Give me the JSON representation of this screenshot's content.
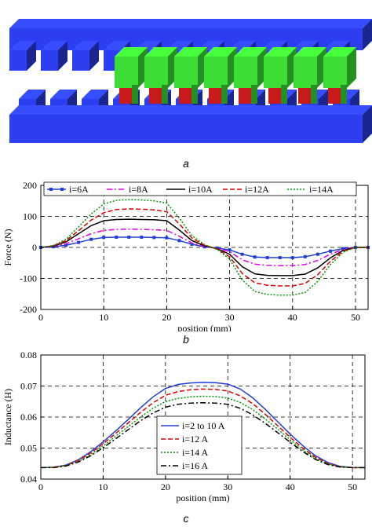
{
  "captions": {
    "a": "a",
    "b": "b",
    "c": "c"
  },
  "colors": {
    "stator": "#2b3ef0",
    "mover": "#3bdc33",
    "coil": "#c81a1a",
    "i6": "#1f3fd8",
    "i8": "#e000e0",
    "i10": "#000000",
    "i12": "#e00000",
    "i14": "#009900"
  },
  "chart_data": [
    {
      "type": "line",
      "title": "",
      "xlabel": "position (mm)",
      "ylabel": "Force (N)",
      "xlim": [
        0,
        52
      ],
      "ylim": [
        -200,
        200
      ],
      "xticks": [
        0,
        10,
        20,
        30,
        40,
        50
      ],
      "yticks": [
        -200,
        -100,
        0,
        100,
        200
      ],
      "grid": true,
      "legend": "top",
      "series": [
        {
          "name": "i=6A",
          "color": "#1f3fd8",
          "style": "solid-square",
          "x": [
            0,
            2,
            4,
            6,
            8,
            10,
            12,
            14,
            16,
            18,
            20,
            22,
            24,
            26,
            28,
            30,
            32,
            34,
            36,
            38,
            40,
            42,
            44,
            46,
            48,
            50,
            52
          ],
          "y": [
            0,
            2,
            7,
            16,
            26,
            32,
            33,
            33,
            33,
            32,
            31,
            22,
            10,
            2,
            -2,
            -8,
            -22,
            -31,
            -33,
            -33,
            -33,
            -30,
            -22,
            -12,
            -4,
            0,
            0
          ]
        },
        {
          "name": "i=8A",
          "color": "#e000e0",
          "style": "dashdot",
          "x": [
            0,
            2,
            4,
            6,
            8,
            10,
            12,
            14,
            16,
            18,
            20,
            22,
            24,
            26,
            28,
            30,
            32,
            34,
            36,
            38,
            40,
            42,
            44,
            46,
            48,
            50,
            52
          ],
          "y": [
            0,
            3,
            12,
            28,
            44,
            55,
            58,
            59,
            58,
            57,
            55,
            36,
            14,
            3,
            -3,
            -14,
            -40,
            -54,
            -58,
            -59,
            -59,
            -55,
            -42,
            -22,
            -7,
            0,
            0
          ]
        },
        {
          "name": "i=10A",
          "color": "#000000",
          "style": "solid",
          "x": [
            0,
            2,
            4,
            6,
            8,
            10,
            12,
            14,
            16,
            18,
            20,
            22,
            24,
            26,
            28,
            30,
            32,
            34,
            36,
            38,
            40,
            42,
            44,
            46,
            48,
            50,
            52
          ],
          "y": [
            0,
            4,
            18,
            44,
            70,
            86,
            90,
            91,
            90,
            89,
            86,
            56,
            22,
            5,
            -4,
            -22,
            -62,
            -85,
            -90,
            -91,
            -91,
            -86,
            -66,
            -34,
            -10,
            0,
            0
          ]
        },
        {
          "name": "i=12A",
          "color": "#e00000",
          "style": "dashed",
          "x": [
            0,
            2,
            4,
            6,
            8,
            10,
            12,
            14,
            16,
            18,
            20,
            22,
            24,
            26,
            28,
            30,
            32,
            34,
            36,
            38,
            40,
            42,
            44,
            46,
            48,
            50,
            52
          ],
          "y": [
            0,
            5,
            22,
            54,
            88,
            112,
            122,
            124,
            123,
            121,
            115,
            76,
            30,
            7,
            -5,
            -30,
            -84,
            -114,
            -122,
            -124,
            -124,
            -116,
            -88,
            -45,
            -13,
            0,
            0
          ]
        },
        {
          "name": "i=14A",
          "color": "#009900",
          "style": "dotted",
          "x": [
            0,
            2,
            4,
            6,
            8,
            10,
            12,
            14,
            16,
            18,
            20,
            22,
            24,
            26,
            28,
            30,
            32,
            34,
            36,
            38,
            40,
            42,
            44,
            46,
            48,
            50,
            52
          ],
          "y": [
            0,
            6,
            26,
            66,
            108,
            140,
            152,
            154,
            153,
            150,
            143,
            95,
            38,
            9,
            -6,
            -38,
            -105,
            -142,
            -152,
            -154,
            -154,
            -145,
            -110,
            -56,
            -16,
            0,
            0
          ]
        }
      ]
    },
    {
      "type": "line",
      "title": "",
      "xlabel": "position (mm)",
      "ylabel": "Inductance (H)",
      "xlim": [
        0,
        52
      ],
      "ylim": [
        0.04,
        0.08
      ],
      "xticks": [
        0,
        10,
        20,
        30,
        40,
        50
      ],
      "yticks": [
        0.04,
        0.05,
        0.06,
        0.07,
        0.08
      ],
      "grid": true,
      "legend": "bottom-left",
      "series": [
        {
          "name": "i=2 to 10 A",
          "color": "#1f3fd8",
          "style": "solid",
          "x": [
            0,
            2,
            4,
            6,
            8,
            10,
            12,
            14,
            16,
            18,
            20,
            22,
            24,
            26,
            28,
            30,
            32,
            34,
            36,
            38,
            40,
            42,
            44,
            46,
            48,
            50,
            52
          ],
          "y": [
            0.0437,
            0.0438,
            0.0445,
            0.0462,
            0.0488,
            0.052,
            0.0555,
            0.0592,
            0.063,
            0.0665,
            0.0692,
            0.0705,
            0.071,
            0.0712,
            0.0711,
            0.0706,
            0.069,
            0.0662,
            0.0625,
            0.0585,
            0.0545,
            0.0508,
            0.0476,
            0.0454,
            0.0441,
            0.0437,
            0.0437
          ]
        },
        {
          "name": "i=12 A",
          "color": "#e00000",
          "style": "dashed",
          "x": [
            0,
            2,
            4,
            6,
            8,
            10,
            12,
            14,
            16,
            18,
            20,
            22,
            24,
            26,
            28,
            30,
            32,
            34,
            36,
            38,
            40,
            42,
            44,
            46,
            48,
            50,
            52
          ],
          "y": [
            0.0437,
            0.0438,
            0.0444,
            0.046,
            0.0484,
            0.0514,
            0.0547,
            0.0581,
            0.0615,
            0.0646,
            0.067,
            0.0682,
            0.0688,
            0.069,
            0.0689,
            0.0684,
            0.0668,
            0.0643,
            0.0609,
            0.0572,
            0.0535,
            0.05,
            0.0471,
            0.0451,
            0.044,
            0.0437,
            0.0437
          ]
        },
        {
          "name": "i=14 A",
          "color": "#009900",
          "style": "dotted",
          "x": [
            0,
            2,
            4,
            6,
            8,
            10,
            12,
            14,
            16,
            18,
            20,
            22,
            24,
            26,
            28,
            30,
            32,
            34,
            36,
            38,
            40,
            42,
            44,
            46,
            48,
            50,
            52
          ],
          "y": [
            0.0437,
            0.0438,
            0.0443,
            0.0457,
            0.0479,
            0.0507,
            0.0538,
            0.0569,
            0.06,
            0.0628,
            0.065,
            0.066,
            0.0665,
            0.0667,
            0.0666,
            0.0661,
            0.0647,
            0.0624,
            0.0594,
            0.0561,
            0.0527,
            0.0494,
            0.0467,
            0.0449,
            0.0439,
            0.0437,
            0.0437
          ]
        },
        {
          "name": "i=16 A",
          "color": "#000000",
          "style": "dashdot",
          "x": [
            0,
            2,
            4,
            6,
            8,
            10,
            12,
            14,
            16,
            18,
            20,
            22,
            24,
            26,
            28,
            30,
            32,
            34,
            36,
            38,
            40,
            42,
            44,
            46,
            48,
            50,
            52
          ],
          "y": [
            0.0437,
            0.0437,
            0.0442,
            0.0455,
            0.0475,
            0.0501,
            0.053,
            0.0559,
            0.0588,
            0.0613,
            0.0632,
            0.0641,
            0.0645,
            0.0646,
            0.0645,
            0.0641,
            0.0628,
            0.0607,
            0.058,
            0.055,
            0.0519,
            0.0489,
            0.0464,
            0.0447,
            0.0439,
            0.0437,
            0.0437
          ]
        }
      ]
    }
  ]
}
